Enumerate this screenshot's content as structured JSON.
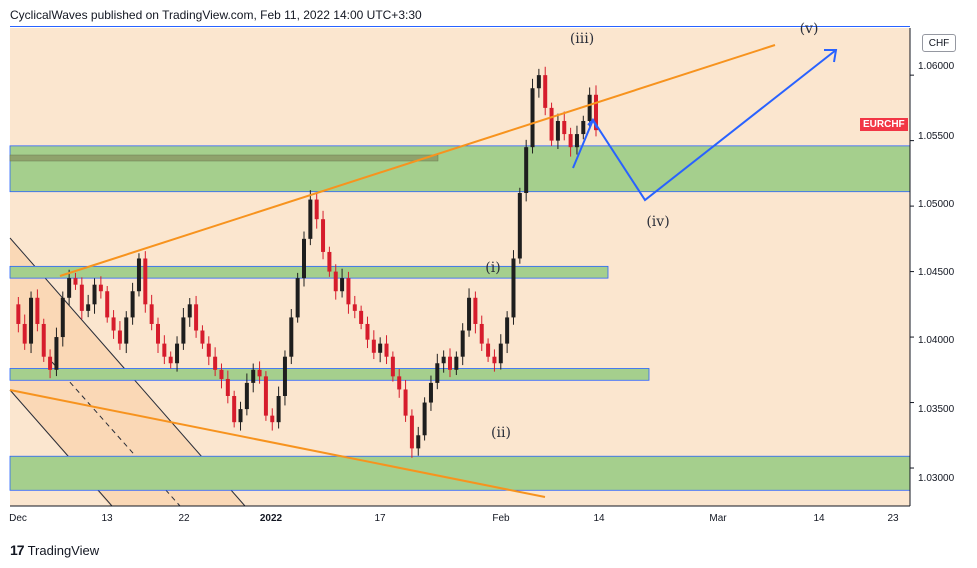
{
  "header": {
    "publisher_text": "CyclicalWaves published on TradingView.com, Feb 11, 2022 14:00 UTC+3:30"
  },
  "footer": {
    "logo_mark": "17",
    "brand": "TradingView"
  },
  "chart_data": {
    "type": "candlestick",
    "symbol": "EURCHF",
    "currency": "CHF",
    "y_ticks": [
      "1.06000",
      "1.05500",
      "1.05000",
      "1.04500",
      "1.04000",
      "1.03500",
      "1.03000"
    ],
    "ylim": [
      1.0271,
      1.0636
    ],
    "x_ticks": [
      {
        "label": "Dec",
        "bold": false
      },
      {
        "label": "13",
        "bold": false
      },
      {
        "label": "22",
        "bold": false
      },
      {
        "label": "2022",
        "bold": true
      },
      {
        "label": "17",
        "bold": false
      },
      {
        "label": "Feb",
        "bold": false
      },
      {
        "label": "14",
        "bold": false
      },
      {
        "label": "Mar",
        "bold": false
      },
      {
        "label": "14",
        "bold": false
      },
      {
        "label": "23",
        "bold": false
      }
    ],
    "price_series": [
      1.0425,
      1.041,
      1.0395,
      1.043,
      1.041,
      1.0385,
      1.0375,
      1.04,
      1.043,
      1.0445,
      1.044,
      1.042,
      1.0425,
      1.044,
      1.0435,
      1.0415,
      1.0405,
      1.0395,
      1.0415,
      1.0435,
      1.046,
      1.0425,
      1.041,
      1.0395,
      1.0385,
      1.038,
      1.0395,
      1.0415,
      1.0425,
      1.0405,
      1.0395,
      1.0385,
      1.0375,
      1.0368,
      1.0355,
      1.0335,
      1.0345,
      1.0365,
      1.0375,
      1.037,
      1.034,
      1.0335,
      1.0355,
      1.0385,
      1.0415,
      1.0445,
      1.0475,
      1.0505,
      1.049,
      1.0465,
      1.045,
      1.0435,
      1.0445,
      1.0425,
      1.042,
      1.041,
      1.0398,
      1.0388,
      1.0395,
      1.0385,
      1.037,
      1.036,
      1.034,
      1.0315,
      1.0325,
      1.035,
      1.0365,
      1.038,
      1.0385,
      1.0375,
      1.0385,
      1.0405,
      1.043,
      1.041,
      1.0395,
      1.0385,
      1.038,
      1.0395,
      1.0415,
      1.046,
      1.051,
      1.0545,
      1.059,
      1.06,
      1.0575,
      1.055,
      1.0565,
      1.0555,
      1.0545,
      1.0555,
      1.0565,
      1.0585,
      1.0558
    ],
    "wave_labels": [
      "(i)",
      "(ii)",
      "(iii)",
      "(iv)",
      "(v)"
    ],
    "wave_projection": [
      {
        "date": "Feb 9",
        "price": 1.0528
      },
      {
        "date": "Feb 11",
        "price": 1.0558
      },
      {
        "date": "Feb 18",
        "price": 1.0503
      },
      {
        "date": "Mar 16",
        "price": 1.0612
      }
    ],
    "support_zones": [
      {
        "low": 1.0511,
        "high": 1.0546
      },
      {
        "low": 1.0445,
        "high": 1.0454
      },
      {
        "low": 1.0367,
        "high": 1.0376
      },
      {
        "low": 1.0283,
        "high": 1.0309
      }
    ],
    "trendlines": [
      {
        "from": {
          "date": "Dec 6",
          "price": 1.0446
        },
        "to": {
          "date": "Mar 7",
          "price": 1.062
        }
      },
      {
        "from": {
          "date": "Dec 1",
          "price": 1.0367
        },
        "to": {
          "date": "Feb 3",
          "price": 1.0286
        }
      }
    ],
    "grid": false,
    "legend": "none"
  }
}
